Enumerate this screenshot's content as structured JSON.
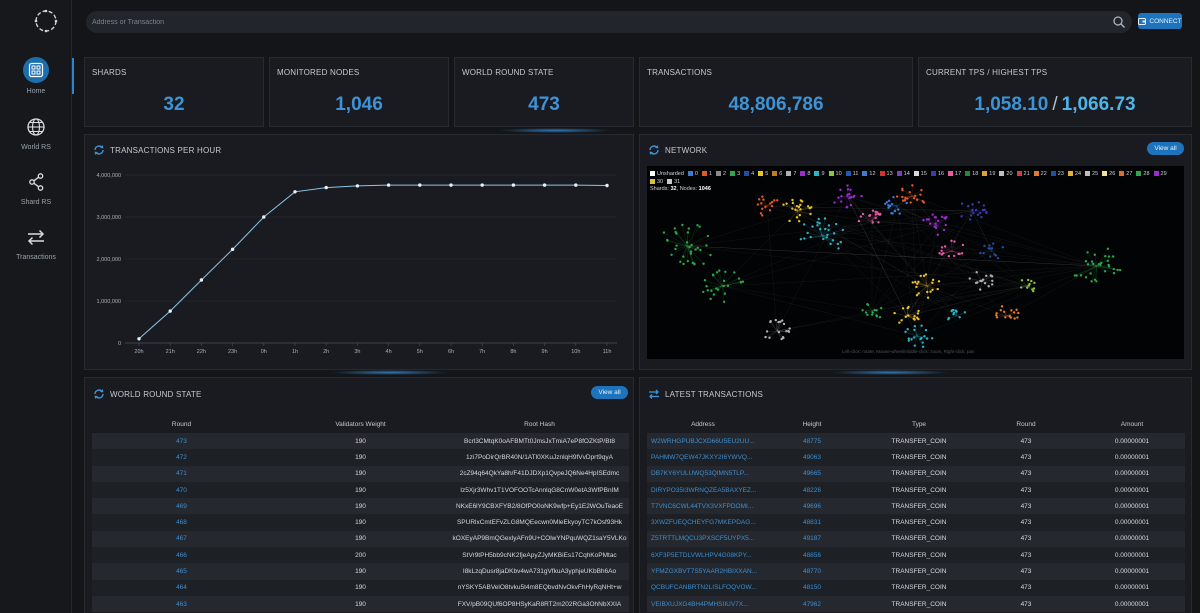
{
  "sidebar": {
    "items": [
      {
        "label": "Home",
        "icon": "dashboard-icon",
        "active": true
      },
      {
        "label": "World RS",
        "icon": "globe-icon",
        "active": false
      },
      {
        "label": "Shard RS",
        "icon": "share-icon",
        "active": false
      },
      {
        "label": "Transactions",
        "icon": "swap-arrows-icon",
        "active": false
      }
    ]
  },
  "search": {
    "placeholder": "Address or Transaction",
    "value": ""
  },
  "connect": {
    "label": "CONNECT"
  },
  "stats": {
    "shards": {
      "label": "SHARDS",
      "value": "32"
    },
    "nodes": {
      "label": "MONITORED NODES",
      "value": "1,046"
    },
    "world_round": {
      "label": "WORLD ROUND STATE",
      "value": "473"
    },
    "transactions": {
      "label": "TRANSACTIONS",
      "value": "48,806,786"
    },
    "tps": {
      "label": "CURRENT TPS / HIGHEST TPS",
      "current": "1,058.10",
      "separator": "/",
      "highest": "1,066.73"
    }
  },
  "tph": {
    "title": "TRANSACTIONS PER HOUR"
  },
  "chart_data": {
    "type": "line",
    "title": "TRANSACTIONS PER HOUR",
    "categories": [
      "20h",
      "21h",
      "22h",
      "23h",
      "0h",
      "1h",
      "2h",
      "3h",
      "4h",
      "5h",
      "6h",
      "7h",
      "8h",
      "9h",
      "10h",
      "11h"
    ],
    "series": [
      {
        "values": [
          100000,
          760000,
          1500000,
          2230000,
          3000000,
          3600000,
          3700000,
          3740000,
          3760000,
          3760000,
          3760000,
          3760000,
          3760000,
          3760000,
          3760000,
          3750000
        ]
      }
    ],
    "yticks": [
      0,
      1000000,
      2000000,
      3000000,
      4000000
    ],
    "ytick_labels": [
      "0",
      "1,000,000",
      "2,000,000",
      "3,000,000",
      "4,000,000"
    ],
    "ylim": [
      0,
      4000000
    ],
    "grid": true,
    "line_color": "#8fc3ea"
  },
  "network": {
    "title": "NETWORK",
    "view_all": "View all",
    "legend": [
      {
        "label": "Unsharded",
        "color": "#ffffff"
      },
      {
        "label": "0",
        "color": "#3a7bd5"
      },
      {
        "label": "1",
        "color": "#e2582a"
      },
      {
        "label": "2",
        "color": "#8a8a8a"
      },
      {
        "label": "3",
        "color": "#2aa84a"
      },
      {
        "label": "4",
        "color": "#1f4fa0"
      },
      {
        "label": "5",
        "color": "#e8c32a"
      },
      {
        "label": "6",
        "color": "#c27a1d"
      },
      {
        "label": "7",
        "color": "#b0b0b0"
      },
      {
        "label": "8",
        "color": "#9a2bd0"
      },
      {
        "label": "9",
        "color": "#2bb3c8"
      },
      {
        "label": "10",
        "color": "#8cc63f"
      },
      {
        "label": "11",
        "color": "#1c5bb8"
      },
      {
        "label": "12",
        "color": "#3a7bd5"
      },
      {
        "label": "13",
        "color": "#d8302a"
      },
      {
        "label": "14",
        "color": "#7f3fbf"
      },
      {
        "label": "15",
        "color": "#d9d9d9"
      },
      {
        "label": "16",
        "color": "#3a3ab0"
      },
      {
        "label": "17",
        "color": "#e85aa8"
      },
      {
        "label": "18",
        "color": "#1f8a3a"
      },
      {
        "label": "19",
        "color": "#e0a030"
      },
      {
        "label": "20",
        "color": "#c0c0c0"
      },
      {
        "label": "21",
        "color": "#d93a3a"
      },
      {
        "label": "22",
        "color": "#e27a2a"
      },
      {
        "label": "23",
        "color": "#1f4fa0"
      },
      {
        "label": "24",
        "color": "#e8b030"
      },
      {
        "label": "25",
        "color": "#bdbdbd"
      },
      {
        "label": "26",
        "color": "#f2e0a0"
      },
      {
        "label": "27",
        "color": "#e26a2a"
      },
      {
        "label": "28",
        "color": "#2aa84a"
      },
      {
        "label": "29",
        "color": "#9a2bd0"
      },
      {
        "label": "30",
        "color": "#d9c03a"
      },
      {
        "label": "31",
        "color": "#c8c8c8"
      }
    ],
    "info_shards_label": "Shards:",
    "info_shards": "32",
    "info_nodes_label": "Nodes:",
    "info_nodes": "1046",
    "hint": "Left-click: rotate, Mouse-wheel/middle-click: zoom, Right-click: pan"
  },
  "world_round": {
    "title": "WORLD ROUND STATE",
    "view_all": "View all",
    "columns": [
      "Round",
      "Validators Weight",
      "Root Hash"
    ],
    "rows": [
      [
        "473",
        "190",
        "Bcrl3CMtqK0oAFBMTt0JmsJxTmiA7eP8fOZKtP/Bt8"
      ],
      [
        "472",
        "190",
        "1zi7PoDirQrBR40N/1ATl0XKuJznlqH9fVvDprt9qyA"
      ],
      [
        "471",
        "190",
        "2cZ94q64QkYa8h/F41DJDXp1QvpeJQ6Ne4HpISEdmc"
      ],
      [
        "470",
        "190",
        "Iz5Xjr3Whv1T1VOFOOTcAnnlqG8CnW0etA3WfPBnIM"
      ],
      [
        "469",
        "190",
        "NKxE6lY9CBXFYB2/8OfPO0oNK9wfp+Ey1E2WOuTeaoE"
      ],
      [
        "468",
        "190",
        "SPURlxCmtEFvZLG8MQEecwn0MleEkyoyTC7kOsf93Hk"
      ],
      [
        "467",
        "190",
        "kOXEyAP9BmQGexlyAFn9U+COlwYNPquWQZ1saY5VLKo"
      ],
      [
        "466",
        "200",
        "StVr9tPH5bb9cNK2fjeApyZJyMKBiEs17CqhKoPMtac"
      ],
      [
        "465",
        "190",
        "I8kLzqDusr8jaDKbv4wA731gVfkuA3yphjeUKbBh6Ao"
      ],
      [
        "464",
        "190",
        "nYSKY5ABVelO8tvku5t4m8EQbvdNvOkvFhHyRqNHt+w"
      ],
      [
        "463",
        "190",
        "FXV/pB09QUf6OP8HSyKaR8RT2m202RGa3OhNbXXIA"
      ]
    ]
  },
  "latest_tx": {
    "title": "LATEST TRANSACTIONS",
    "columns": [
      "Address",
      "Height",
      "Type",
      "Round",
      "Amount"
    ],
    "rows": [
      [
        "W2WRHGPUBJCXD66U5EU2UU...",
        "48775",
        "TRANSFER_COIN",
        "473",
        "0.00000001"
      ],
      [
        "PAHMW7QEW47JKXY2I6YWVQ...",
        "49063",
        "TRANSFER_COIN",
        "473",
        "0.00000001"
      ],
      [
        "DB7KY6YULUWQ53QIMN5TLP...",
        "49665",
        "TRANSFER_COIN",
        "473",
        "0.00000001"
      ],
      [
        "DIRYPO35I3WRNQZEA5BAXYEZ...",
        "48226",
        "TRANSFER_COIN",
        "473",
        "0.00000001"
      ],
      [
        "T7VNC6CWL44TVX3VXFPDOMI...",
        "49696",
        "TRANSFER_COIN",
        "473",
        "0.00000001"
      ],
      [
        "3XWZFUEQCHEYFG7MKEPDAG...",
        "48831",
        "TRANSFER_COIN",
        "473",
        "0.00000001"
      ],
      [
        "Z5TRTTLMQCU3PXSCF5UYPX5...",
        "49187",
        "TRANSFER_COIN",
        "473",
        "0.00000001"
      ],
      [
        "6XF3P5ETDLVWLHPV4G08KPY...",
        "48856",
        "TRANSFER_COIN",
        "473",
        "0.00000001"
      ],
      [
        "YFMZGXBVT7S5YAAR2HBIXXAN...",
        "48770",
        "TRANSFER_COIN",
        "473",
        "0.00000001"
      ],
      [
        "QCBUFCANBRTN2LISLFOQVOW...",
        "48150",
        "TRANSFER_COIN",
        "473",
        "0.00000001"
      ],
      [
        "VEIBXUJXG4BH4PMHSIIUV7X...",
        "47962",
        "TRANSFER_COIN",
        "473",
        "0.00000001"
      ]
    ]
  }
}
